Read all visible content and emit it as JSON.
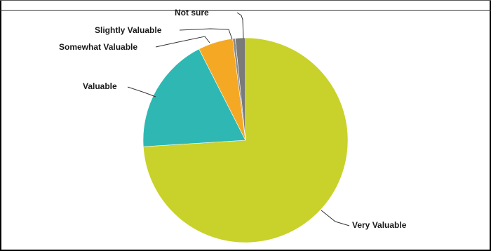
{
  "chart_data": {
    "type": "pie",
    "title": "",
    "slices": [
      {
        "label": "Very Valuable",
        "value": 74,
        "color": "#c9d12b"
      },
      {
        "label": "Valuable",
        "value": 18.5,
        "color": "#2fb8b3"
      },
      {
        "label": "Somewhat Valuable",
        "value": 5.5,
        "color": "#f5a824"
      },
      {
        "label": "Slightly Valuable",
        "value": 0.4,
        "color": "#8a8a8a"
      },
      {
        "label": "Not sure",
        "value": 1.6,
        "color": "#7a7a78"
      }
    ],
    "start": "12 o'clock",
    "direction": "clockwise",
    "labels": "outside with leader lines"
  }
}
